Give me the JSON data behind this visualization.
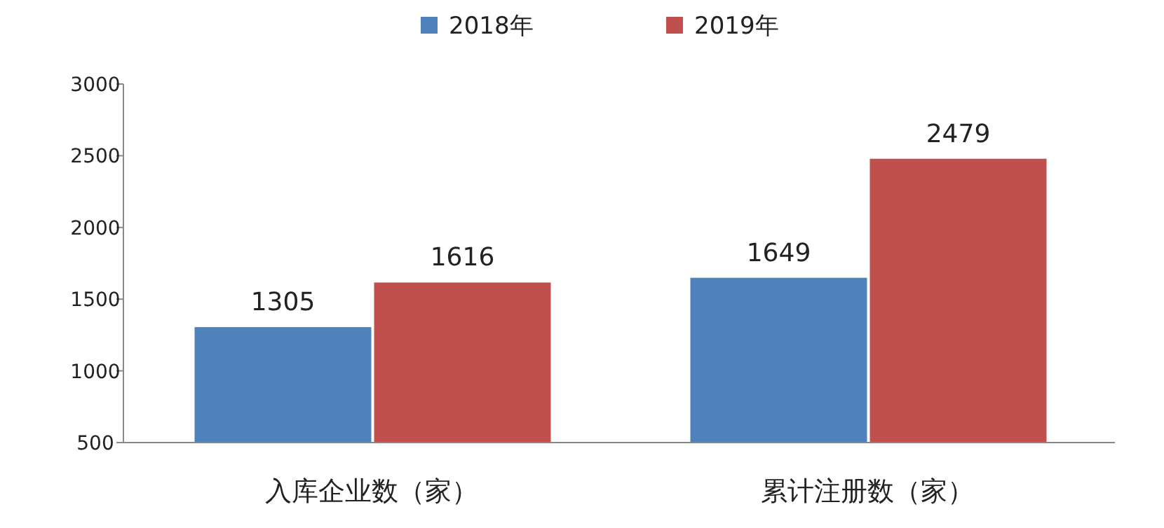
{
  "chart_data": {
    "type": "bar",
    "categories": [
      "入库企业数（家）",
      "累计注册数（家）"
    ],
    "series": [
      {
        "name": "2018年",
        "color": "#4f81bd",
        "values": [
          1305,
          1649
        ]
      },
      {
        "name": "2019年",
        "color": "#c0504d",
        "values": [
          1616,
          2479
        ]
      }
    ],
    "ylim": [
      500,
      3000
    ],
    "yticks": [
      500,
      1000,
      1500,
      2000,
      2500,
      3000
    ],
    "data_labels": true,
    "legend": "top",
    "grid": false
  }
}
